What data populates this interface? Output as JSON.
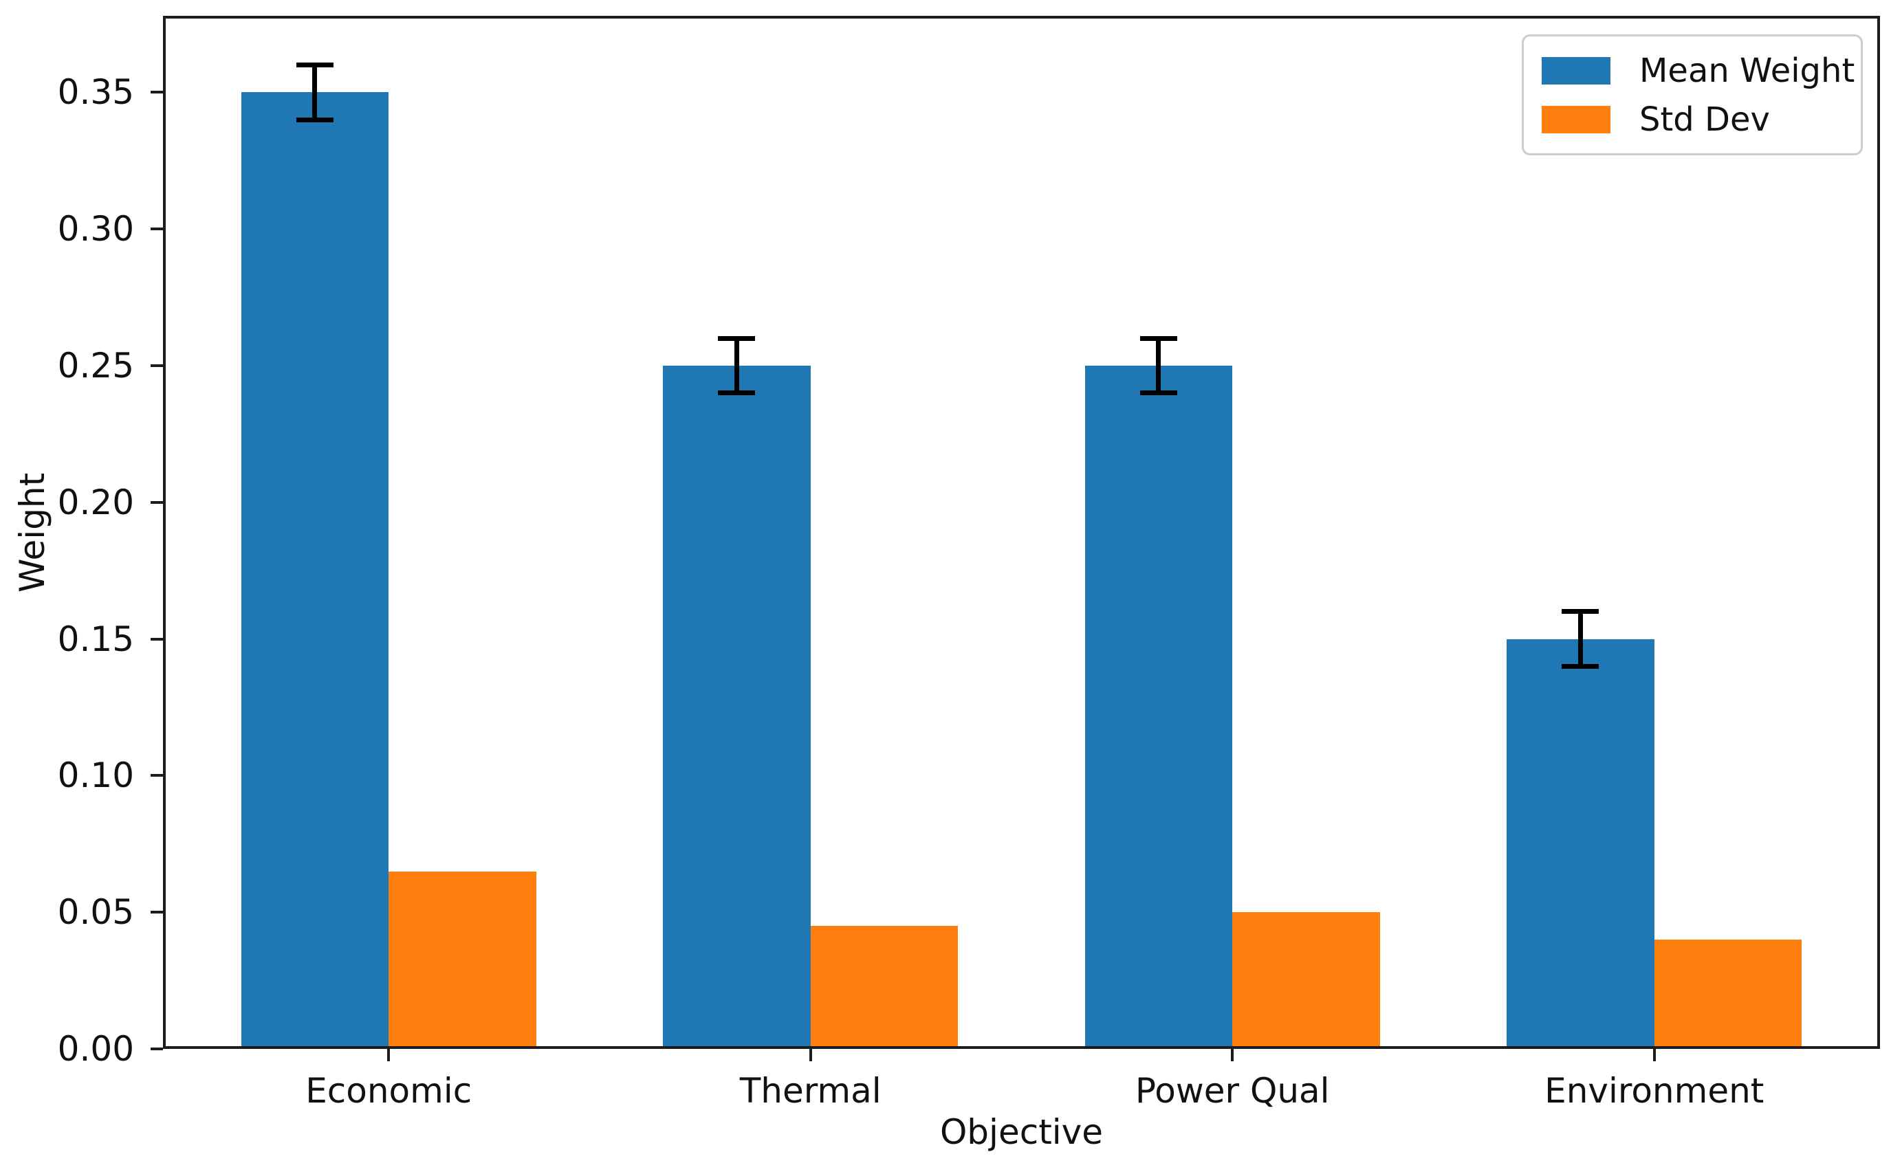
{
  "chart_data": {
    "type": "bar",
    "categories": [
      "Economic",
      "Thermal",
      "Power Qual",
      "Environment"
    ],
    "series": [
      {
        "name": "Mean Weight",
        "color": "#1f77b4",
        "values": [
          0.35,
          0.25,
          0.25,
          0.15
        ],
        "errors": [
          0.01,
          0.01,
          0.01,
          0.01
        ]
      },
      {
        "name": "Std Dev",
        "color": "#ff7f0e",
        "values": [
          0.065,
          0.045,
          0.05,
          0.04
        ],
        "errors": null
      }
    ],
    "xlabel": "Objective",
    "ylabel": "Weight",
    "ylim": [
      0,
      0.378
    ],
    "xlim": [
      -0.535,
      3.535
    ],
    "yticks": [
      0.0,
      0.05,
      0.1,
      0.15,
      0.2,
      0.25,
      0.3,
      0.35
    ],
    "ytick_labels": [
      "0.00",
      "0.05",
      "0.10",
      "0.15",
      "0.20",
      "0.25",
      "0.30",
      "0.35"
    ],
    "bar_width": 0.35,
    "grid": false,
    "error_bar_color": "#000000",
    "legend": {
      "position": "upper right",
      "entries": [
        "Mean Weight",
        "Std Dev"
      ]
    }
  }
}
